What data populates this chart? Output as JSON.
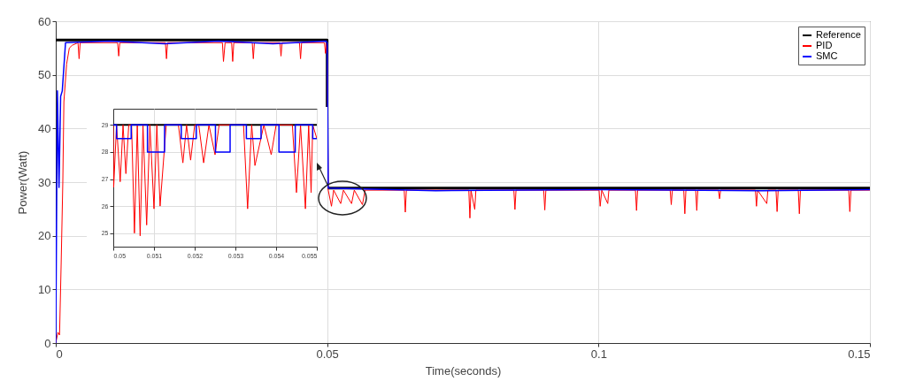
{
  "chart_data": [
    {
      "type": "line",
      "xlabel": "Time(seconds)",
      "ylabel": "Power(Watt)",
      "xlim": [
        0,
        0.15
      ],
      "ylim": [
        0,
        60
      ],
      "xticks": [
        0,
        0.05,
        0.1,
        0.15
      ],
      "yticks": [
        0,
        10,
        20,
        30,
        40,
        50,
        60
      ],
      "grid": true,
      "legend": "top right",
      "series": [
        {
          "name": "Reference",
          "color": "#000000",
          "x": [
            0,
            0.05,
            0.05,
            0.15
          ],
          "values": [
            56.5,
            56.5,
            28.9,
            28.9
          ]
        },
        {
          "name": "PID",
          "color": "#ff0000",
          "x": [
            0,
            0.0004,
            0.0007,
            0.001,
            0.0013,
            0.0015,
            0.002,
            0.0025,
            0.003,
            0.0041,
            0.0043,
            0.0045,
            0.0114,
            0.0116,
            0.0118,
            0.0202,
            0.0204,
            0.0206,
            0.0307,
            0.0309,
            0.0312,
            0.0324,
            0.0326,
            0.0328,
            0.0362,
            0.0364,
            0.0366,
            0.0413,
            0.0415,
            0.0417,
            0.0449,
            0.0451,
            0.0453,
            0.0495,
            0.0497,
            0.0499,
            0.05,
            0.0502,
            0.0508,
            0.0512,
            0.0525,
            0.053,
            0.0545,
            0.055,
            0.0565,
            0.057,
            0.0642,
            0.0644,
            0.0646,
            0.0761,
            0.0763,
            0.0765,
            0.0772,
            0.0774,
            0.0844,
            0.0846,
            0.0848,
            0.0899,
            0.0901,
            0.0903,
            0.1001,
            0.1003,
            0.1006,
            0.1017,
            0.1019,
            0.1068,
            0.107,
            0.1072,
            0.1132,
            0.1134,
            0.1136,
            0.1157,
            0.1159,
            0.1161,
            0.1179,
            0.1181,
            0.1183,
            0.1221,
            0.1223,
            0.1225,
            0.1289,
            0.1291,
            0.1293,
            0.131,
            0.1312,
            0.1327,
            0.1329,
            0.1331,
            0.1368,
            0.137,
            0.1372,
            0.1461,
            0.1463,
            0.1465,
            0.15
          ],
          "values": [
            0,
            2,
            1.5,
            15,
            30,
            45,
            52,
            55,
            55.5,
            56,
            53,
            56,
            56,
            53.5,
            56,
            56,
            53,
            56,
            56,
            52.5,
            56,
            56,
            52.5,
            56,
            56,
            53,
            56,
            56,
            53.5,
            56,
            56,
            53,
            56,
            56,
            54,
            56,
            56,
            28.5,
            25.5,
            28.5,
            26,
            28.5,
            26,
            28.5,
            25.8,
            28.5,
            28.5,
            24.4,
            28.5,
            28.5,
            23.3,
            28.5,
            24.9,
            28.5,
            28.5,
            24.9,
            28.5,
            28.5,
            24.8,
            28.5,
            28.5,
            25.5,
            28.5,
            26,
            28.5,
            28.5,
            24.7,
            28.5,
            28.5,
            25.8,
            28.5,
            28.5,
            24.1,
            28.5,
            28.5,
            24.7,
            28.5,
            28.5,
            26.9,
            28.5,
            28.5,
            25.5,
            28.5,
            26,
            28.5,
            28.5,
            24.5,
            28.5,
            28.5,
            24.1,
            28.5,
            28.5,
            24.5,
            28.5,
            28.5
          ]
        },
        {
          "name": "SMC",
          "color": "#0000ff",
          "x": [
            0,
            0.0003,
            0.0006,
            0.0009,
            0.0012,
            0.0018,
            0.01,
            0.02,
            0.03,
            0.04,
            0.0498,
            0.05,
            0.0502,
            0.07,
            0.1,
            0.13,
            0.15
          ],
          "values": [
            0,
            47,
            29,
            46,
            47,
            56,
            56.3,
            55.8,
            56.3,
            55.8,
            56.3,
            56,
            28.9,
            28.4,
            28.6,
            28.4,
            28.6
          ]
        }
      ]
    },
    {
      "type": "line",
      "xlim": [
        0.05,
        0.055
      ],
      "ylim": [
        24.5,
        29.6
      ],
      "xticks": [
        0.05,
        0.051,
        0.052,
        0.053,
        0.054,
        0.055
      ],
      "yticks": [
        25,
        26,
        27,
        28,
        29
      ],
      "grid": true,
      "series": [
        {
          "color": "#000000",
          "x": [
            0.05,
            0.055
          ],
          "values": [
            29,
            29
          ]
        },
        {
          "color": "#ff0000",
          "x": [
            0.05,
            0.05001,
            0.05008,
            0.05017,
            0.05024,
            0.05031,
            0.05038,
            0.05045,
            0.05052,
            0.05059,
            0.05066,
            0.05073,
            0.05082,
            0.0509,
            0.051,
            0.05107,
            0.05115,
            0.0513,
            0.0516,
            0.05171,
            0.0518,
            0.0519,
            0.052,
            0.0521,
            0.05222,
            0.05235,
            0.0525,
            0.0526,
            0.0532,
            0.0533,
            0.0534,
            0.05348,
            0.0537,
            0.05388,
            0.054,
            0.0544,
            0.0545,
            0.0546,
            0.05472,
            0.0548,
            0.05486,
            0.0549,
            0.055
          ],
          "values": [
            29,
            26.7,
            29,
            26.9,
            29,
            27.2,
            29,
            29,
            25,
            29,
            24.9,
            29,
            25.3,
            29,
            25.9,
            29,
            26,
            29,
            29,
            27.6,
            29,
            27.7,
            29,
            29,
            27.6,
            29,
            27.9,
            29,
            29,
            25.9,
            29,
            27.5,
            29,
            27.9,
            29,
            29,
            26.5,
            29,
            25.9,
            29,
            26.5,
            29,
            28.5
          ]
        },
        {
          "color": "#0000ff",
          "x": [
            0.05,
            0.05008,
            0.05008,
            0.05044,
            0.05044,
            0.05084,
            0.05084,
            0.05126,
            0.05126,
            0.05167,
            0.05167,
            0.05204,
            0.05204,
            0.05251,
            0.05251,
            0.05287,
            0.05287,
            0.05327,
            0.05327,
            0.05363,
            0.05363,
            0.05407,
            0.05407,
            0.05447,
            0.05447,
            0.0549,
            0.0549,
            0.055
          ],
          "values": [
            29,
            29,
            28.5,
            28.5,
            29,
            29,
            28,
            28,
            29,
            29,
            28.5,
            28.5,
            29,
            29,
            28,
            28,
            29,
            29,
            28.5,
            28.5,
            29,
            29,
            28,
            28,
            29,
            29,
            28.5,
            28.5
          ]
        }
      ]
    }
  ]
}
